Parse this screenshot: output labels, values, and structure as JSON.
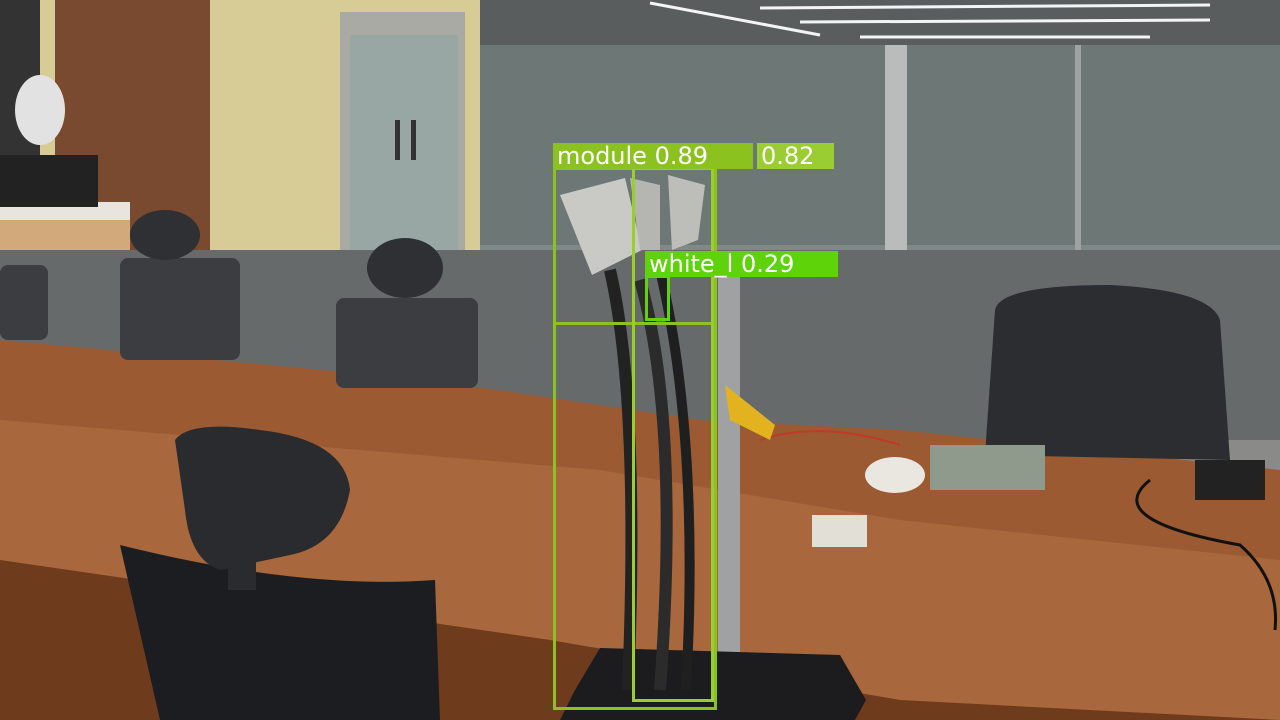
{
  "detections": [
    {
      "label_text": "module  0.89",
      "class": "module",
      "confidence": 0.89,
      "color": "#8cc21f"
    },
    {
      "label_text": "0.82",
      "class": "module",
      "confidence": 0.82,
      "color": "#9acd32"
    },
    {
      "label_text": "white_l  0.29",
      "class": "white_l",
      "confidence": 0.29,
      "color": "#5fd30a"
    }
  ],
  "colors": {
    "box_primary": "#8cc21f",
    "box_secondary": "#9acd32",
    "box_small": "#5fd30a"
  }
}
